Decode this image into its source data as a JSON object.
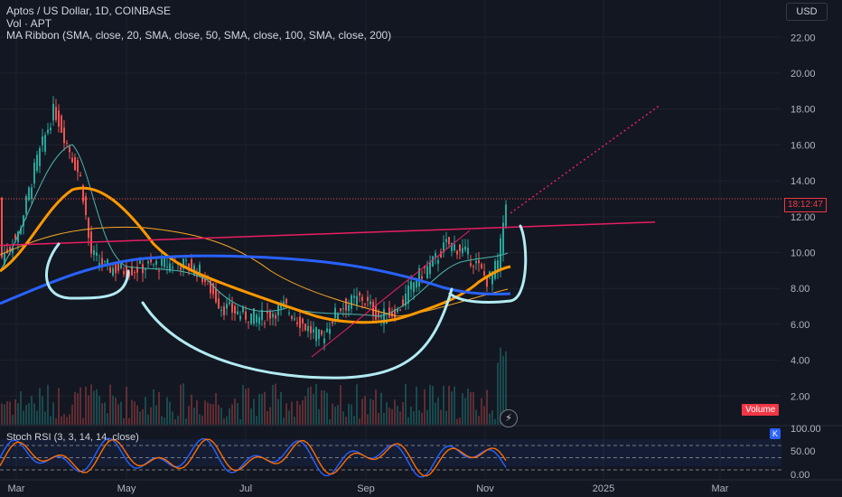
{
  "header": {
    "symbol_line": "Aptos / US Dollar, 1D, COINBASE",
    "volume_line": "Vol · APT",
    "ma_line": "MA Ribbon (SMA, close, 20, SMA, close, 50, SMA, close, 100, SMA, close, 200)"
  },
  "currency_button": "USD",
  "price_axis_labels": [
    "22.00",
    "20.00",
    "18.00",
    "16.00",
    "14.00",
    "12.00",
    "10.00",
    "8.00",
    "6.00",
    "4.00",
    "2.00"
  ],
  "countdown_label": "18:12:47",
  "volume_badge": "Volume",
  "stoch_legend": "Stoch RSI (3, 3, 14, 14, close)",
  "stoch_axis_labels": [
    "100.00",
    "50.00",
    "0.00"
  ],
  "k_badge": "K",
  "time_axis_labels": [
    "Mar",
    "May",
    "Jul",
    "Sep",
    "Nov",
    "2025",
    "Mar"
  ],
  "colors": {
    "background": "#131722",
    "up": "#26a69a",
    "down": "#ef5350",
    "ma20": "#4db6ac",
    "ma50": "#ff9800",
    "ma100": "#f9a825",
    "ma200": "#2962ff",
    "trendline": "#e91e63",
    "drawing": "#b2ebf2",
    "stoch_k": "#2962ff",
    "stoch_d": "#ff6d00"
  },
  "chart_data": {
    "type": "candlestick",
    "price_range": [
      0,
      23
    ],
    "last_price_level": 13.0,
    "trendline_start": 10.4,
    "trendline_end": 11.7,
    "projection_target": 18.2,
    "stoch_levels": [
      80,
      50,
      20
    ]
  }
}
